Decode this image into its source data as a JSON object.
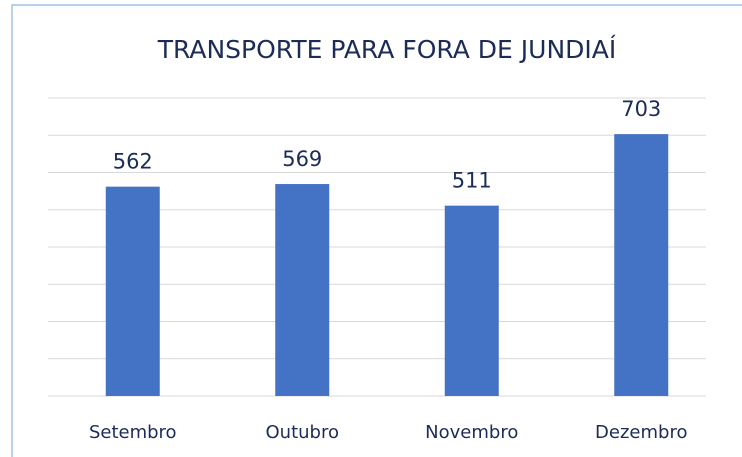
{
  "chart_data": {
    "type": "bar",
    "title": "TRANSPORTE PARA FORA DE JUNDIAÍ",
    "categories": [
      "Setembro",
      "Outubro",
      "Novembro",
      "Dezembro"
    ],
    "values": [
      562,
      569,
      511,
      703
    ],
    "color": "#4472c4",
    "ylim": [
      0,
      800
    ],
    "yticks": [
      0,
      100,
      200,
      300,
      400,
      500,
      600,
      700,
      800
    ],
    "grid": true
  }
}
